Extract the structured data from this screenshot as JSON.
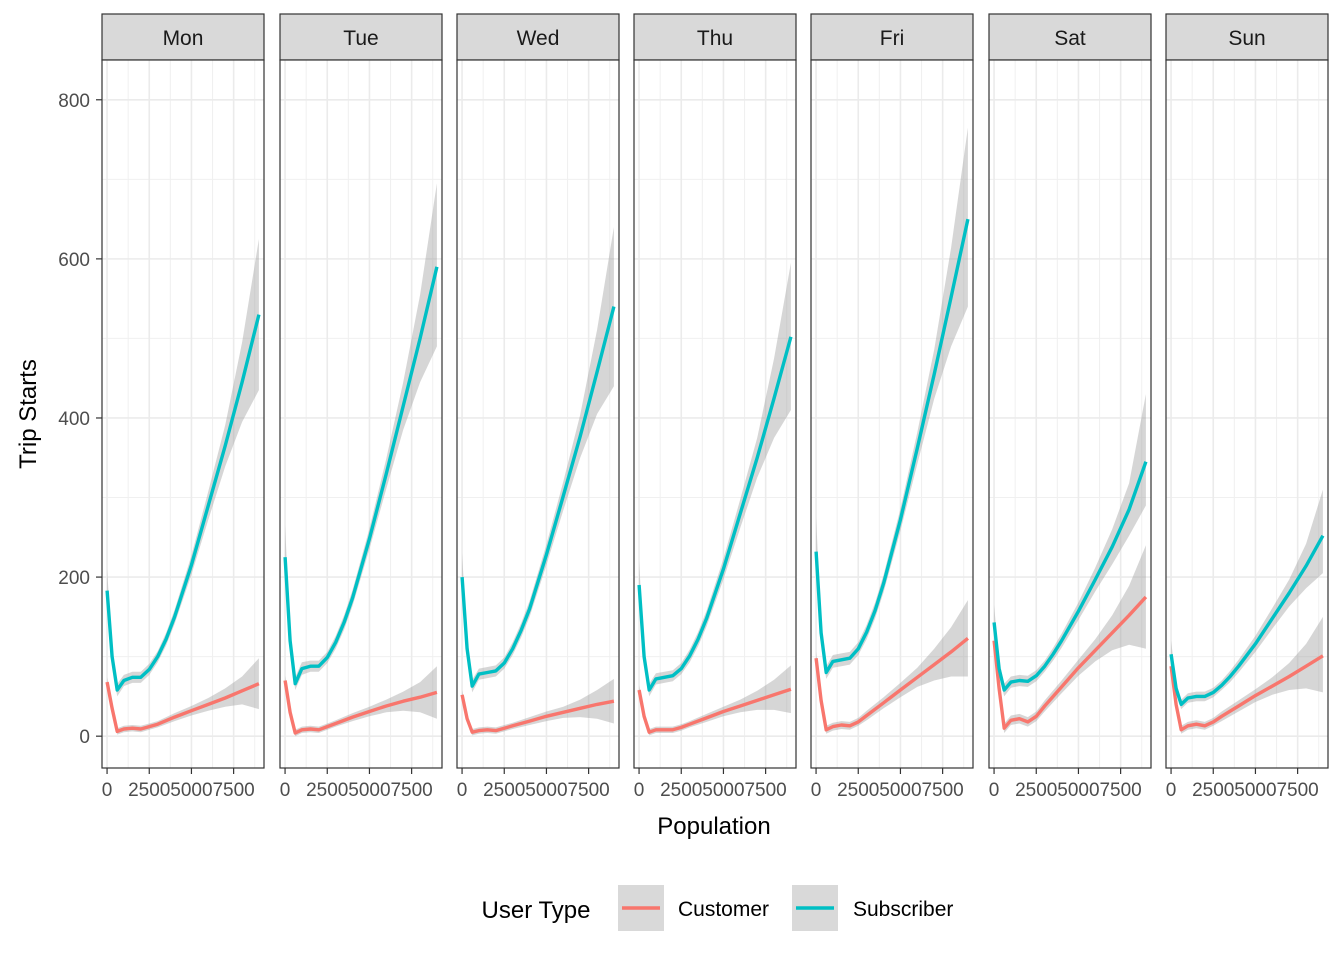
{
  "chart_data": {
    "type": "line",
    "facet_by": "day of week",
    "panels": [
      "Mon",
      "Tue",
      "Wed",
      "Thu",
      "Fri",
      "Sat",
      "Sun"
    ],
    "xlabel": "Population",
    "ylabel": "Trip Starts",
    "xlim": [
      -300,
      9300
    ],
    "ylim": [
      -40,
      850
    ],
    "x_ticks": [
      0,
      2500,
      5000,
      7500
    ],
    "x_tick_labels": [
      "0",
      "2500",
      "5000",
      "7500"
    ],
    "y_ticks": [
      0,
      200,
      400,
      600,
      800
    ],
    "y_tick_labels": [
      "0",
      "200",
      "400",
      "600",
      "800"
    ],
    "grid": true,
    "confidence_band": true,
    "legend": {
      "title": "User Type",
      "position": "bottom",
      "entries": [
        "Customer",
        "Subscriber"
      ]
    },
    "series": [
      {
        "name": "Customer",
        "color": "#F8766D",
        "curves": {
          "Mon": {
            "x": [
              0,
              300,
              600,
              1000,
              1500,
              2000,
              2500,
              3000,
              4000,
              5000,
              6000,
              7000,
              8000,
              9000
            ],
            "y": [
              68,
              35,
              6,
              9,
              10,
              9,
              12,
              15,
              24,
              32,
              40,
              48,
              57,
              66
            ],
            "lower": [
              62,
              30,
              2,
              5,
              6,
              5,
              8,
              11,
              19,
              26,
              32,
              37,
              40,
              34
            ],
            "upper": [
              74,
              40,
              10,
              13,
              14,
              13,
              16,
              19,
              29,
              38,
              48,
              60,
              75,
              98
            ]
          },
          "Tue": {
            "x": [
              0,
              300,
              600,
              1000,
              1500,
              2000,
              2500,
              3000,
              4000,
              5000,
              6000,
              7000,
              8000,
              9000
            ],
            "y": [
              70,
              30,
              4,
              8,
              9,
              8,
              12,
              16,
              24,
              31,
              38,
              44,
              49,
              55
            ],
            "lower": [
              64,
              25,
              0,
              4,
              5,
              4,
              8,
              12,
              19,
              25,
              30,
              32,
              30,
              22
            ],
            "upper": [
              76,
              35,
              8,
              12,
              13,
              12,
              16,
              20,
              29,
              37,
              46,
              56,
              68,
              88
            ]
          },
          "Wed": {
            "x": [
              0,
              300,
              600,
              1000,
              1500,
              2000,
              2500,
              3000,
              4000,
              5000,
              6000,
              7000,
              8000,
              9000
            ],
            "y": [
              52,
              22,
              5,
              7,
              8,
              7,
              10,
              13,
              19,
              25,
              30,
              35,
              40,
              44
            ],
            "lower": [
              46,
              17,
              1,
              3,
              4,
              3,
              6,
              9,
              14,
              19,
              23,
              24,
              22,
              16
            ],
            "upper": [
              58,
              27,
              9,
              11,
              12,
              11,
              14,
              17,
              24,
              31,
              37,
              46,
              58,
              72
            ]
          },
          "Thu": {
            "x": [
              0,
              300,
              600,
              1000,
              1500,
              2000,
              2500,
              3000,
              4000,
              5000,
              6000,
              7000,
              8000,
              9000
            ],
            "y": [
              58,
              25,
              5,
              8,
              8,
              8,
              11,
              15,
              23,
              31,
              38,
              45,
              52,
              59
            ],
            "lower": [
              52,
              20,
              1,
              4,
              4,
              4,
              7,
              11,
              18,
              25,
              30,
              33,
              33,
              29
            ],
            "upper": [
              64,
              30,
              9,
              12,
              12,
              12,
              15,
              19,
              28,
              37,
              46,
              57,
              71,
              89
            ]
          },
          "Fri": {
            "x": [
              0,
              300,
              600,
              1000,
              1500,
              2000,
              2500,
              3000,
              4000,
              5000,
              6000,
              7000,
              8000,
              9000
            ],
            "y": [
              98,
              45,
              8,
              12,
              14,
              13,
              18,
              26,
              42,
              58,
              74,
              90,
              106,
              123
            ],
            "lower": [
              90,
              38,
              3,
              7,
              9,
              8,
              13,
              20,
              35,
              49,
              62,
              70,
              75,
              75
            ],
            "upper": [
              106,
              52,
              13,
              17,
              19,
              18,
              23,
              32,
              49,
              67,
              86,
              110,
              137,
              171
            ]
          },
          "Sat": {
            "x": [
              0,
              300,
              600,
              1000,
              1500,
              2000,
              2500,
              3000,
              4000,
              5000,
              6000,
              7000,
              8000,
              9000
            ],
            "y": [
              120,
              60,
              10,
              20,
              22,
              18,
              25,
              38,
              62,
              86,
              108,
              130,
              152,
              175
            ],
            "lower": [
              110,
              52,
              4,
              14,
              16,
              12,
              19,
              31,
              54,
              76,
              94,
              108,
              115,
              110
            ],
            "upper": [
              130,
              68,
              16,
              26,
              28,
              24,
              31,
              45,
              70,
              96,
              122,
              152,
              189,
              240
            ]
          },
          "Sun": {
            "x": [
              0,
              300,
              600,
              1000,
              1500,
              2000,
              2500,
              3000,
              4000,
              5000,
              6000,
              7000,
              8000,
              9000
            ],
            "y": [
              88,
              40,
              8,
              13,
              15,
              13,
              18,
              25,
              38,
              51,
              63,
              75,
              88,
              101
            ],
            "lower": [
              80,
              34,
              3,
              8,
              10,
              8,
              13,
              19,
              31,
              43,
              52,
              58,
              60,
              55
            ],
            "upper": [
              96,
              46,
              13,
              18,
              20,
              18,
              23,
              31,
              45,
              59,
              74,
              92,
              116,
              150
            ]
          }
        }
      },
      {
        "name": "Subscriber",
        "color": "#00BFC4",
        "curves": {
          "Mon": {
            "x": [
              0,
              300,
              600,
              1000,
              1500,
              2000,
              2500,
              3000,
              3500,
              4000,
              5000,
              6000,
              7000,
              8000,
              9000
            ],
            "y": [
              183,
              100,
              58,
              70,
              74,
              74,
              84,
              100,
              122,
              150,
              215,
              290,
              365,
              445,
              530
            ],
            "lower": [
              170,
              90,
              50,
              63,
              67,
              67,
              77,
              93,
              114,
              141,
              203,
              272,
              339,
              395,
              435
            ],
            "upper": [
              210,
              110,
              66,
              77,
              81,
              81,
              91,
              107,
              130,
              159,
              227,
              308,
              391,
              495,
              625
            ]
          },
          "Tue": {
            "x": [
              0,
              300,
              600,
              1000,
              1500,
              2000,
              2500,
              3000,
              3500,
              4000,
              5000,
              6000,
              7000,
              8000,
              9000
            ],
            "y": [
              225,
              120,
              66,
              85,
              88,
              88,
              99,
              118,
              143,
              174,
              248,
              330,
              415,
              500,
              590
            ],
            "lower": [
              205,
              108,
              58,
              77,
              81,
              81,
              92,
              110,
              134,
              164,
              235,
              311,
              385,
              445,
              490
            ],
            "upper": [
              265,
              132,
              74,
              93,
              95,
              95,
              106,
              126,
              152,
              184,
              261,
              349,
              445,
              555,
              695
            ]
          },
          "Wed": {
            "x": [
              0,
              300,
              600,
              1000,
              1500,
              2000,
              2500,
              3000,
              3500,
              4000,
              5000,
              6000,
              7000,
              8000,
              9000
            ],
            "y": [
              200,
              110,
              63,
              78,
              80,
              82,
              92,
              110,
              133,
              160,
              228,
              302,
              377,
              458,
              540
            ],
            "lower": [
              185,
              100,
              55,
              71,
              73,
              75,
              85,
              102,
              124,
              150,
              215,
              284,
              350,
              405,
              440
            ],
            "upper": [
              230,
              120,
              71,
              85,
              87,
              89,
              99,
              118,
              142,
              170,
              241,
              320,
              404,
              511,
              640
            ]
          },
          "Thu": {
            "x": [
              0,
              300,
              600,
              1000,
              1500,
              2000,
              2500,
              3000,
              3500,
              4000,
              5000,
              6000,
              7000,
              8000,
              9000
            ],
            "y": [
              190,
              100,
              58,
              72,
              74,
              76,
              85,
              101,
              122,
              148,
              210,
              280,
              350,
              425,
              502
            ],
            "lower": [
              175,
              90,
              50,
              65,
              67,
              69,
              78,
              93,
              113,
              138,
              197,
              262,
              325,
              375,
              410
            ],
            "upper": [
              220,
              110,
              66,
              79,
              81,
              83,
              92,
              109,
              131,
              158,
              223,
              298,
              375,
              475,
              595
            ]
          },
          "Fri": {
            "x": [
              0,
              300,
              600,
              1000,
              1500,
              2000,
              2500,
              3000,
              3500,
              4000,
              5000,
              6000,
              7000,
              8000,
              9000
            ],
            "y": [
              232,
              130,
              80,
              94,
              96,
              98,
              110,
              131,
              158,
              192,
              272,
              362,
              455,
              552,
              650
            ],
            "lower": [
              210,
              118,
              72,
              86,
              88,
              90,
              102,
              122,
              148,
              181,
              258,
              342,
              424,
              490,
              540
            ],
            "upper": [
              275,
              142,
              88,
              102,
              104,
              106,
              118,
              140,
              168,
              203,
              286,
              382,
              486,
              614,
              765
            ]
          },
          "Sat": {
            "x": [
              0,
              300,
              600,
              1000,
              1500,
              2000,
              2500,
              3000,
              3500,
              4000,
              5000,
              6000,
              7000,
              8000,
              9000
            ],
            "y": [
              143,
              85,
              58,
              68,
              70,
              69,
              76,
              88,
              103,
              120,
              157,
              197,
              238,
              285,
              345
            ],
            "lower": [
              130,
              76,
              50,
              61,
              63,
              62,
              69,
              81,
              95,
              111,
              146,
              182,
              216,
              252,
              290
            ],
            "upper": [
              165,
              94,
              66,
              75,
              77,
              76,
              83,
              95,
              111,
              129,
              168,
              212,
              260,
              318,
              430
            ]
          },
          "Sun": {
            "x": [
              0,
              300,
              600,
              1000,
              1500,
              2000,
              2500,
              3000,
              3500,
              4000,
              5000,
              6000,
              7000,
              8000,
              9000
            ],
            "y": [
              103,
              60,
              40,
              48,
              50,
              50,
              55,
              64,
              75,
              88,
              116,
              148,
              180,
              214,
              252
            ],
            "lower": [
              94,
              53,
              34,
              42,
              44,
              44,
              49,
              58,
              68,
              80,
              106,
              135,
              163,
              186,
              205
            ],
            "upper": [
              120,
              67,
              46,
              54,
              56,
              56,
              61,
              70,
              82,
              96,
              126,
              161,
              197,
              242,
              310
            ]
          }
        }
      }
    ]
  }
}
